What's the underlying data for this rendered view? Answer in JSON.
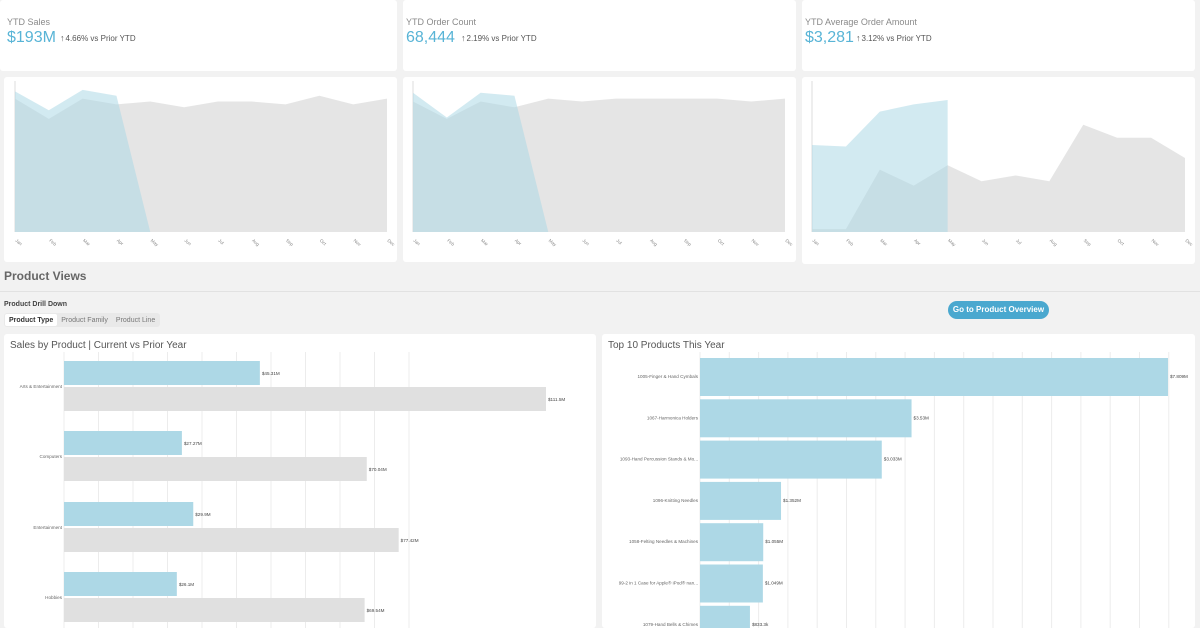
{
  "kpis": [
    {
      "label": "YTD Sales",
      "value": "$193M",
      "change": "4.66% vs Prior YTD"
    },
    {
      "label": "YTD Order Count",
      "value": "68,444",
      "change": "2.19% vs Prior YTD"
    },
    {
      "label": "YTD Average Order Amount",
      "value": "$3,281",
      "change": "3.12% vs Prior YTD"
    }
  ],
  "months": [
    "Jan",
    "Feb",
    "Mar",
    "Apr",
    "May",
    "Jun",
    "Jul",
    "Aug",
    "Sep",
    "Oct",
    "Nov",
    "Dec"
  ],
  "colors": {
    "current": "#add8e6",
    "prior": "#e0e0e0",
    "accent": "#58b4d6",
    "button": "#4aa8cf"
  },
  "section": {
    "title": "Product Views",
    "drill_label": "Product Drill Down",
    "tabs": [
      "Product Type",
      "Product Family",
      "Product Line"
    ],
    "active_tab": "Product Type",
    "overview_button": "Go to Product Overview"
  },
  "chart_data": [
    {
      "type": "area",
      "series": [
        {
          "values": [
            0.97,
            0.84,
            0.98,
            0.94,
            0.0
          ]
        },
        {
          "values": [
            0.92,
            0.78,
            0.92,
            0.88,
            0.9,
            0.86,
            0.9,
            0.9,
            0.88,
            0.94,
            0.88,
            0.92
          ]
        }
      ]
    },
    {
      "type": "area",
      "series": [
        {
          "values": [
            0.96,
            0.79,
            0.96,
            0.94,
            0.0
          ]
        },
        {
          "values": [
            0.9,
            0.78,
            0.9,
            0.86,
            0.92,
            0.9,
            0.92,
            0.92,
            0.92,
            0.92,
            0.9,
            0.92
          ]
        }
      ]
    },
    {
      "type": "area",
      "series": [
        {
          "values": [
            0.6,
            0.59,
            0.83,
            0.88,
            0.91
          ]
        },
        {
          "values": [
            0.02,
            0.02,
            0.43,
            0.32,
            0.46,
            0.35,
            0.39,
            0.35,
            0.74,
            0.65,
            0.65,
            0.51
          ]
        }
      ]
    },
    {
      "type": "bar",
      "title": "Sales by Product | Current vs Prior Year",
      "categories": [
        "Arts & Entertainment",
        "Computers",
        "Entertainment",
        "Hobbies"
      ],
      "series": [
        {
          "values": [
            45.31,
            27.27,
            29.9,
            26.1
          ],
          "labels": [
            "$45.31M",
            "$27.27M",
            "$29.9M",
            "$26.1M"
          ]
        },
        {
          "values": [
            111.5,
            70.04,
            77.42,
            69.54
          ],
          "labels": [
            "$111.5M",
            "$70.04M",
            "$77.42M",
            "$69.54M"
          ]
        }
      ]
    },
    {
      "type": "bar",
      "title": "Top 10 Products This Year",
      "categories": [
        "1005-Finger & Hand Cymbals",
        "1067-Harmonica Holders",
        "1093-Hand Percussion Stands & Mo...",
        "1096-Knitting Needles",
        "1058-Felting Needles & Machines",
        "99-2 in 1 Case for Apple® iPod® nan...",
        "1079-Hand Bells & Chimes"
      ],
      "values": [
        7.809,
        3.53,
        3.033,
        1.352,
        1.055,
        1.049,
        0.8334
      ],
      "labels": [
        "$7.809M",
        "$3.53M",
        "$3.033M",
        "$1.352M",
        "$1.055M",
        "$1.049M",
        "$833.3k"
      ]
    }
  ]
}
